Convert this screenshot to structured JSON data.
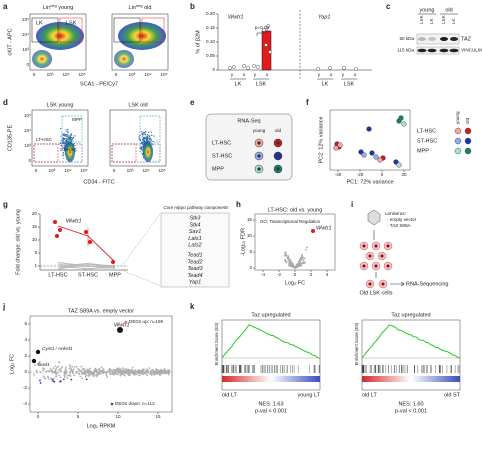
{
  "panels": {
    "a": {
      "label": "a",
      "plot_titles": [
        {
          "base": "Lin",
          "sup": "neg",
          "rest": " young"
        },
        {
          "base": "Lin",
          "sup": "neg",
          "rest": " old"
        }
      ],
      "gates": [
        "LK",
        "LSK"
      ],
      "y_axis": "cKIT - APC",
      "x_axis": "SCA1 - PE/Cy7",
      "y_ticks": [
        "10⁵",
        "10⁴",
        "10³",
        "0"
      ],
      "x_ticks": [
        "0",
        "10³",
        "10⁴",
        "10⁵"
      ]
    },
    "b": {
      "label": "b",
      "genes": [
        "Wwtr1",
        "Yap1"
      ],
      "p_value": "p=0.03",
      "y_axis": "% of β2M",
      "y_ticks": [
        "0.20",
        "0.15",
        "0.10",
        "0.05",
        "0"
      ],
      "ages": [
        "y",
        "o"
      ],
      "groups": [
        "LK",
        "LSK",
        "LK",
        "LSK"
      ]
    },
    "c": {
      "label": "c",
      "ages": [
        "young",
        "old"
      ],
      "lanes": [
        "LSK",
        "LK",
        "LSK",
        "LK"
      ],
      "sizes": [
        "50 kDa",
        "115 kDa"
      ],
      "proteins": [
        "TAZ",
        "VINCULIN"
      ]
    },
    "d": {
      "label": "d",
      "plot_titles": [
        "LSK young",
        "LSK old"
      ],
      "y_axis": "CD135-PE",
      "x_axis": "CD34 - FITC",
      "gates": [
        "MPP",
        "ST-HSC",
        "LT-HSC"
      ],
      "y_ticks": [
        "10⁵",
        "10⁴",
        "10³",
        "0"
      ],
      "x_ticks": [
        "0",
        "10³",
        "10⁴",
        "10⁵"
      ]
    },
    "e": {
      "label": "e",
      "title": "RNA-Seq",
      "ages": [
        "young",
        "old"
      ],
      "populations": [
        "LT-HSC",
        "ST-HSC",
        "MPP"
      ]
    },
    "f": {
      "label": "f",
      "y_axis": "PC2: 12% variance",
      "x_axis": "PC1: 72% variance",
      "x_ticks": [
        "-40",
        "-20",
        "0",
        "20"
      ],
      "legend_ages": [
        "young",
        "old"
      ],
      "populations": [
        "LT-HSC",
        "ST-HSC",
        "MPP"
      ]
    },
    "g": {
      "label": "g",
      "y_axis": "Fold change: old vs. young",
      "y_ticks": [
        "20",
        "15",
        "10",
        "5",
        "1"
      ],
      "highlight": "Wwtr1",
      "x_labels": [
        "LT-HSC",
        "ST-HSC",
        "MPP"
      ],
      "box_title": "Core Hippo pathway components",
      "genes": [
        "Stk3",
        "Stk4",
        "Sav1",
        "Lats1",
        "Lats2",
        "Tead1",
        "Tead2",
        "Tead3",
        "Tead4",
        "Yap1"
      ]
    },
    "h": {
      "label": "h",
      "title": "LT-HSC: old vs. young",
      "y_axis": "-Log₁₀ FDR",
      "x_axis": "Log₂ FC",
      "annotation": "GO: Transcriptional Regulation",
      "highlight": "Wwtr1",
      "x_ticks": [
        "-4",
        "-2",
        "0",
        "2",
        "4"
      ],
      "y_ticks": [
        "15",
        "10",
        "5",
        "0"
      ]
    },
    "i": {
      "label": "i",
      "vector_title": "Lentivirus:",
      "vectors": [
        "- empty vector",
        "- TAZ S89A"
      ],
      "cells": "Old LSK cells",
      "readout": "RNA-Sequencing"
    },
    "j": {
      "label": "j",
      "title": "TAZ S89A vs. empty vector",
      "legend": [
        "DEGs up: n=169",
        "DEGs down: n=112"
      ],
      "genes": [
        "Wwtr1",
        "Cyr61 / Ankrd1",
        "Tead1"
      ],
      "y_axis": "Log₂ FC",
      "x_axis": "Log₂ RPKM",
      "y_ticks": [
        "6",
        "4",
        "2",
        "0",
        "-2",
        "-4"
      ],
      "x_ticks": [
        "0",
        "5",
        "10",
        "15"
      ]
    },
    "k": {
      "label": "k",
      "y_axis": "Enrichment Score (ES)",
      "plots": [
        {
          "title": "Taz upregulated",
          "left": "old LT",
          "right": "young LT",
          "nes": "NES: 1.63",
          "p": "p-val < 0.001"
        },
        {
          "title": "Taz upregulated",
          "left": "old LT",
          "right": "old ST",
          "nes": "NES: 1.60",
          "p": "p-val < 0.001"
        }
      ]
    }
  }
}
